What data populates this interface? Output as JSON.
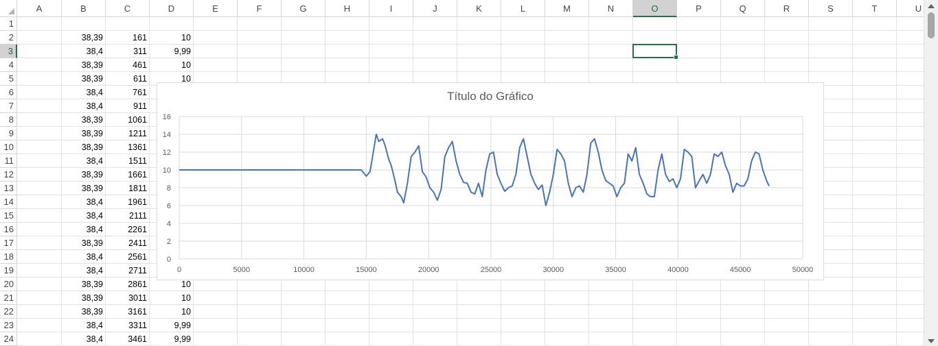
{
  "columns": [
    "A",
    "B",
    "C",
    "D",
    "E",
    "F",
    "G",
    "H",
    "I",
    "J",
    "K",
    "L",
    "M",
    "N",
    "O",
    "P",
    "Q",
    "R",
    "S",
    "T",
    "U"
  ],
  "selected_column": "O",
  "selected_row": 3,
  "rows": [
    {
      "n": "1",
      "b": "",
      "c": "",
      "d": ""
    },
    {
      "n": "2",
      "b": "38,39",
      "c": "161",
      "d": "10"
    },
    {
      "n": "3",
      "b": "38,4",
      "c": "311",
      "d": "9,99"
    },
    {
      "n": "4",
      "b": "38,39",
      "c": "461",
      "d": "10"
    },
    {
      "n": "5",
      "b": "38,39",
      "c": "611",
      "d": "10"
    },
    {
      "n": "6",
      "b": "38,4",
      "c": "761",
      "d": ""
    },
    {
      "n": "7",
      "b": "38,4",
      "c": "911",
      "d": ""
    },
    {
      "n": "8",
      "b": "38,39",
      "c": "1061",
      "d": ""
    },
    {
      "n": "9",
      "b": "38,39",
      "c": "1211",
      "d": ""
    },
    {
      "n": "10",
      "b": "38,39",
      "c": "1361",
      "d": ""
    },
    {
      "n": "11",
      "b": "38,4",
      "c": "1511",
      "d": ""
    },
    {
      "n": "12",
      "b": "38,39",
      "c": "1661",
      "d": ""
    },
    {
      "n": "13",
      "b": "38,39",
      "c": "1811",
      "d": ""
    },
    {
      "n": "14",
      "b": "38,4",
      "c": "1961",
      "d": ""
    },
    {
      "n": "15",
      "b": "38,4",
      "c": "2111",
      "d": ""
    },
    {
      "n": "16",
      "b": "38,4",
      "c": "2261",
      "d": ""
    },
    {
      "n": "17",
      "b": "38,39",
      "c": "2411",
      "d": ""
    },
    {
      "n": "18",
      "b": "38,4",
      "c": "2561",
      "d": ""
    },
    {
      "n": "19",
      "b": "38,4",
      "c": "2711",
      "d": ""
    },
    {
      "n": "20",
      "b": "38,39",
      "c": "2861",
      "d": "10"
    },
    {
      "n": "21",
      "b": "38,39",
      "c": "3011",
      "d": "10"
    },
    {
      "n": "22",
      "b": "38,39",
      "c": "3161",
      "d": "10"
    },
    {
      "n": "23",
      "b": "38,4",
      "c": "3311",
      "d": "9,99"
    },
    {
      "n": "24",
      "b": "38,4",
      "c": "3461",
      "d": "9,99"
    }
  ],
  "chart_data": {
    "type": "line",
    "title": "Título do Gráfico",
    "xlim": [
      0,
      50000
    ],
    "ylim": [
      0,
      16
    ],
    "x_ticks": [
      "0",
      "5000",
      "10000",
      "15000",
      "20000",
      "25000",
      "30000",
      "35000",
      "40000",
      "45000",
      "50000"
    ],
    "y_ticks": [
      "0",
      "2",
      "4",
      "6",
      "8",
      "10",
      "12",
      "14",
      "16"
    ],
    "grid": true,
    "series": [
      {
        "color": "#4472c4",
        "x": [
          0,
          14600,
          15000,
          15300,
          15600,
          15800,
          16000,
          16300,
          16500,
          16800,
          17000,
          17300,
          17500,
          17800,
          18000,
          18300,
          18600,
          18900,
          19200,
          19500,
          19800,
          20100,
          20400,
          20700,
          21000,
          21300,
          21600,
          21900,
          22200,
          22500,
          22800,
          23100,
          23400,
          23700,
          24000,
          24300,
          24600,
          24900,
          25200,
          25500,
          25800,
          26100,
          26400,
          26700,
          27000,
          27300,
          27600,
          27900,
          28200,
          28500,
          28800,
          29100,
          29400,
          29700,
          30000,
          30300,
          30600,
          30900,
          31200,
          31500,
          31800,
          32100,
          32400,
          32700,
          33000,
          33300,
          33600,
          33900,
          34200,
          34500,
          34800,
          35100,
          35400,
          35700,
          36000,
          36300,
          36600,
          36900,
          37200,
          37500,
          37800,
          38100,
          38400,
          38700,
          39000,
          39300,
          39600,
          39900,
          40200,
          40500,
          40800,
          41100,
          41400,
          41700,
          42000,
          42300,
          42600,
          42900,
          43200,
          43500,
          43800,
          44100,
          44400,
          44700,
          45000,
          45300,
          45600,
          45900,
          46200,
          46500,
          46800,
          47100,
          47300
        ],
        "y": [
          10,
          10,
          9.3,
          9.8,
          12.3,
          14,
          13.2,
          13.5,
          12.8,
          11.2,
          10.5,
          8.8,
          7.5,
          7,
          6.3,
          8.5,
          11.5,
          12,
          12.7,
          9.8,
          9.2,
          8,
          7.5,
          6.6,
          7.8,
          11.5,
          12.5,
          13.2,
          11,
          9.5,
          8.6,
          8.5,
          7.5,
          7.3,
          8.5,
          7,
          10,
          11.8,
          12,
          9.5,
          8.5,
          7.6,
          8,
          8.2,
          9.5,
          12.5,
          13.5,
          11.5,
          9.5,
          8.5,
          7.8,
          8.3,
          6,
          7.5,
          9.5,
          12.3,
          11.8,
          11,
          8.5,
          7,
          8,
          8.2,
          7.5,
          9.5,
          13,
          13.5,
          12,
          10,
          8.8,
          8.5,
          8.2,
          7,
          8,
          8.5,
          11.8,
          11,
          12.5,
          9.5,
          8.5,
          7.3,
          7,
          7,
          10,
          11.8,
          9.5,
          8.7,
          9,
          8,
          9,
          12.3,
          12,
          11.5,
          8,
          8.8,
          9.5,
          8.5,
          9.5,
          11.8,
          11.5,
          12,
          10.5,
          9.5,
          7.5,
          8.5,
          8.2,
          8.2,
          9,
          11,
          12,
          11.8,
          10,
          8.8,
          8.2
        ]
      }
    ]
  }
}
